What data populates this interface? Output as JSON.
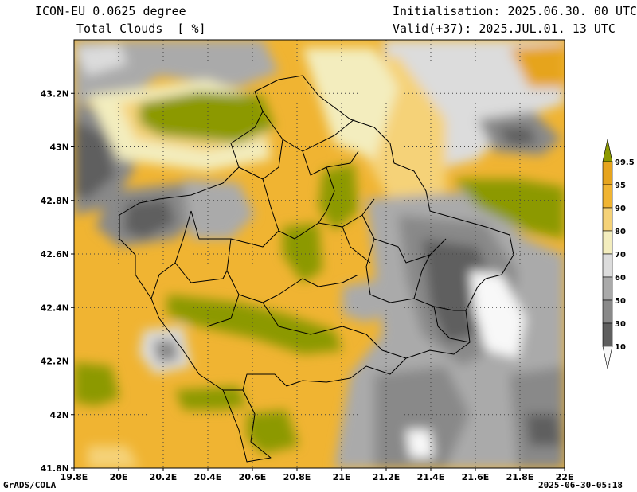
{
  "header": {
    "model": "ICON-EU 0.0625 degree",
    "variable": "Total Clouds  [ %]",
    "initialisation": "Initialisation: 2025.06.30. 00 UTC",
    "valid": "Valid(+37): 2025.JUL.01. 13 UTC"
  },
  "map": {
    "lon_range": [
      19.8,
      22.0
    ],
    "lat_range": [
      41.8,
      43.4
    ],
    "lon_ticks": [
      "19.8E",
      "20E",
      "20.2E",
      "20.4E",
      "20.6E",
      "20.8E",
      "21E",
      "21.2E",
      "21.4E",
      "21.6E",
      "21.8E",
      "22E"
    ],
    "lat_ticks": [
      "41.8N",
      "42N",
      "42.2N",
      "42.4N",
      "42.6N",
      "42.8N",
      "43N",
      "43.2N"
    ],
    "grid": "dotted"
  },
  "colorbar": {
    "labels": [
      "99.5",
      "95",
      "90",
      "80",
      "70",
      "60",
      "50",
      "30",
      "10"
    ],
    "colors": [
      "#8c9900",
      "#e6a41e",
      "#f0b432",
      "#f5d278",
      "#f3edbe",
      "#dcdcdc",
      "#aaaaaa",
      "#898989",
      "#5f5f5f",
      "#f8f8f8"
    ]
  },
  "footer": {
    "credit": "GrADS/COLA",
    "timestamp": "2025-06-30-05:18"
  }
}
